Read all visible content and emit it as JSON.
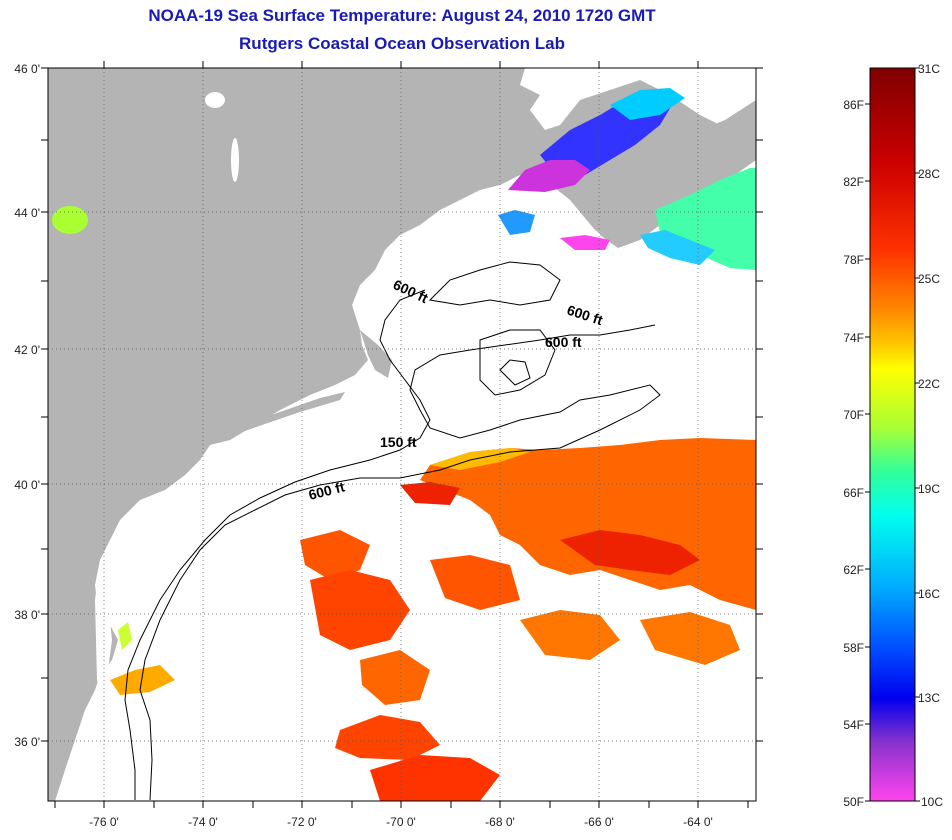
{
  "header": {
    "title": "NOAA-19 Sea Surface Temperature:  August 24, 2010 1720 GMT",
    "subtitle": "Rutgers Coastal Ocean Observation Lab"
  },
  "map": {
    "lat_labels": [
      "46 0'",
      "44 0'",
      "42 0'",
      "40 0'",
      "38 0'",
      "36 0'"
    ],
    "lon_labels": [
      "-76 0'",
      "-74 0'",
      "-72 0'",
      "-70 0'",
      "-68 0'",
      "-66 0'",
      "-64 0'"
    ],
    "contour_labels": [
      "600 ft",
      "600 ft",
      "600 ft",
      "150 ft",
      "600 ft"
    ],
    "colors": {
      "land": "#b4b4b4",
      "water_nodata": "#ffffff"
    }
  },
  "colorbar": {
    "celsius_labels": [
      "31C",
      "28C",
      "25C",
      "22C",
      "19C",
      "16C",
      "13C",
      "10C"
    ],
    "fahrenheit_labels": [
      "86F",
      "82F",
      "78F",
      "74F",
      "70F",
      "66F",
      "62F",
      "58F",
      "54F",
      "50F"
    ],
    "colors": [
      "#800000",
      "#cc0000",
      "#ff2200",
      "#ff7700",
      "#ffcc00",
      "#ffff00",
      "#aaff33",
      "#33ff99",
      "#00ffee",
      "#00aaff",
      "#0044ff",
      "#0000ee",
      "#8833cc",
      "#ff44ee"
    ]
  }
}
